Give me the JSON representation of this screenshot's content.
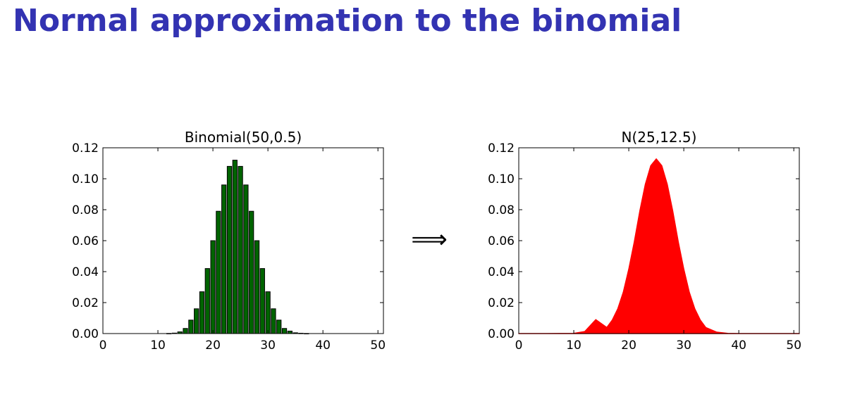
{
  "slide": {
    "title": "Normal approximation to the binomial",
    "title_color": "#3333b2",
    "arrow_symbol": "⟹"
  },
  "chart_data": [
    {
      "type": "bar",
      "title": "Binomial(50,0.5)",
      "xlabel": "",
      "ylabel": "",
      "xlim": [
        0,
        51
      ],
      "ylim": [
        0,
        0.12
      ],
      "xticks": [
        "0",
        "10",
        "20",
        "30",
        "40",
        "50"
      ],
      "yticks": [
        "0.00",
        "0.02",
        "0.04",
        "0.06",
        "0.08",
        "0.10",
        "0.12"
      ],
      "grid": false,
      "bar_color": "#006400",
      "edge_color": "#000000",
      "x": [
        12,
        13,
        14,
        15,
        16,
        17,
        18,
        19,
        20,
        21,
        22,
        23,
        24,
        25,
        26,
        27,
        28,
        29,
        30,
        31,
        32,
        33,
        34,
        35,
        36,
        37
      ],
      "values": [
        8e-05,
        0.0003,
        0.0011,
        0.0033,
        0.0087,
        0.016,
        0.027,
        0.042,
        0.06,
        0.079,
        0.096,
        0.108,
        0.112,
        0.108,
        0.096,
        0.079,
        0.06,
        0.042,
        0.027,
        0.016,
        0.0087,
        0.0033,
        0.0016,
        0.0005,
        0.0002,
        5e-05
      ]
    },
    {
      "type": "area",
      "title": "N(25,12.5)",
      "xlabel": "",
      "ylabel": "",
      "xlim": [
        0,
        51
      ],
      "ylim": [
        0,
        0.12
      ],
      "xticks": [
        "0",
        "10",
        "20",
        "30",
        "40",
        "50"
      ],
      "yticks": [
        "0.00",
        "0.02",
        "0.04",
        "0.06",
        "0.08",
        "0.10",
        "0.12"
      ],
      "grid": false,
      "fill_color": "#ff0000",
      "x": [
        0,
        5,
        10,
        12,
        14,
        16,
        17,
        18,
        19,
        20,
        21,
        22,
        23,
        24,
        25,
        26,
        27,
        28,
        29,
        30,
        31,
        32,
        33,
        34,
        36,
        38,
        40,
        45,
        51
      ],
      "values": [
        0.0,
        0.0,
        0.0001,
        0.0013,
        0.009,
        0.0039,
        0.0087,
        0.016,
        0.0267,
        0.0416,
        0.0592,
        0.079,
        0.0963,
        0.1084,
        0.1128,
        0.1084,
        0.0963,
        0.079,
        0.0592,
        0.0416,
        0.0267,
        0.016,
        0.0087,
        0.0039,
        0.0009,
        0.0001,
        0.0,
        0.0,
        0.0
      ]
    }
  ]
}
